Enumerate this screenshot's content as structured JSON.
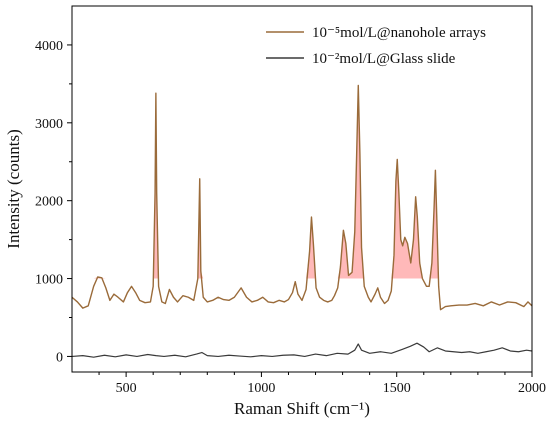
{
  "chart_data": {
    "type": "line",
    "xlabel": "Raman Shift (cm⁻¹)",
    "ylabel": "Intensity (counts)",
    "xlim": [
      300,
      2000
    ],
    "ylim": [
      -200,
      4500
    ],
    "x_ticks": [
      500,
      1000,
      1500,
      2000
    ],
    "y_ticks": [
      0,
      1000,
      2000,
      3000,
      4000
    ],
    "legend_position": "top-right",
    "grid": false,
    "series": [
      {
        "name": "10⁻⁵mol/L@nanohole arrays",
        "color": "#9a6b3a",
        "peak_fill_color": "#ff8080",
        "points": [
          [
            300,
            760
          ],
          [
            320,
            700
          ],
          [
            340,
            620
          ],
          [
            360,
            650
          ],
          [
            380,
            900
          ],
          [
            395,
            1020
          ],
          [
            410,
            1010
          ],
          [
            425,
            880
          ],
          [
            440,
            720
          ],
          [
            455,
            800
          ],
          [
            470,
            760
          ],
          [
            490,
            700
          ],
          [
            505,
            820
          ],
          [
            520,
            900
          ],
          [
            535,
            820
          ],
          [
            550,
            720
          ],
          [
            570,
            690
          ],
          [
            590,
            700
          ],
          [
            600,
            900
          ],
          [
            607,
            2100
          ],
          [
            610,
            3380
          ],
          [
            613,
            2100
          ],
          [
            620,
            900
          ],
          [
            632,
            700
          ],
          [
            645,
            680
          ],
          [
            660,
            860
          ],
          [
            675,
            760
          ],
          [
            690,
            700
          ],
          [
            710,
            780
          ],
          [
            730,
            760
          ],
          [
            750,
            720
          ],
          [
            765,
            1000
          ],
          [
            772,
            2280
          ],
          [
            776,
            1100
          ],
          [
            785,
            760
          ],
          [
            800,
            700
          ],
          [
            820,
            720
          ],
          [
            840,
            760
          ],
          [
            860,
            730
          ],
          [
            880,
            720
          ],
          [
            900,
            760
          ],
          [
            925,
            880
          ],
          [
            945,
            760
          ],
          [
            965,
            700
          ],
          [
            985,
            720
          ],
          [
            1005,
            760
          ],
          [
            1025,
            700
          ],
          [
            1045,
            690
          ],
          [
            1065,
            720
          ],
          [
            1085,
            700
          ],
          [
            1100,
            730
          ],
          [
            1115,
            820
          ],
          [
            1125,
            960
          ],
          [
            1135,
            800
          ],
          [
            1150,
            720
          ],
          [
            1165,
            860
          ],
          [
            1178,
            1350
          ],
          [
            1185,
            1790
          ],
          [
            1192,
            1450
          ],
          [
            1202,
            880
          ],
          [
            1215,
            760
          ],
          [
            1230,
            720
          ],
          [
            1245,
            700
          ],
          [
            1260,
            720
          ],
          [
            1270,
            780
          ],
          [
            1282,
            880
          ],
          [
            1292,
            1150
          ],
          [
            1303,
            1620
          ],
          [
            1312,
            1450
          ],
          [
            1322,
            1040
          ],
          [
            1335,
            1080
          ],
          [
            1345,
            1600
          ],
          [
            1352,
            2600
          ],
          [
            1358,
            3480
          ],
          [
            1364,
            2600
          ],
          [
            1370,
            1400
          ],
          [
            1380,
            900
          ],
          [
            1395,
            760
          ],
          [
            1405,
            700
          ],
          [
            1420,
            800
          ],
          [
            1430,
            880
          ],
          [
            1440,
            760
          ],
          [
            1455,
            680
          ],
          [
            1468,
            720
          ],
          [
            1480,
            840
          ],
          [
            1490,
            1300
          ],
          [
            1497,
            2250
          ],
          [
            1502,
            2530
          ],
          [
            1508,
            2100
          ],
          [
            1515,
            1500
          ],
          [
            1522,
            1420
          ],
          [
            1530,
            1530
          ],
          [
            1540,
            1450
          ],
          [
            1552,
            1200
          ],
          [
            1562,
            1500
          ],
          [
            1570,
            2050
          ],
          [
            1576,
            1800
          ],
          [
            1585,
            1200
          ],
          [
            1595,
            1000
          ],
          [
            1610,
            900
          ],
          [
            1620,
            900
          ],
          [
            1630,
            1200
          ],
          [
            1638,
            1900
          ],
          [
            1643,
            2390
          ],
          [
            1648,
            1800
          ],
          [
            1655,
            900
          ],
          [
            1662,
            600
          ],
          [
            1680,
            640
          ],
          [
            1700,
            650
          ],
          [
            1730,
            660
          ],
          [
            1760,
            660
          ],
          [
            1790,
            680
          ],
          [
            1820,
            650
          ],
          [
            1850,
            700
          ],
          [
            1880,
            660
          ],
          [
            1910,
            700
          ],
          [
            1940,
            690
          ],
          [
            1970,
            640
          ],
          [
            1985,
            700
          ],
          [
            2000,
            650
          ]
        ]
      },
      {
        "name": "10⁻²mol/L@Glass slide",
        "color": "#3a3a3a",
        "points": [
          [
            300,
            0
          ],
          [
            340,
            10
          ],
          [
            380,
            -10
          ],
          [
            420,
            15
          ],
          [
            460,
            -5
          ],
          [
            500,
            20
          ],
          [
            540,
            0
          ],
          [
            580,
            25
          ],
          [
            610,
            10
          ],
          [
            640,
            0
          ],
          [
            680,
            15
          ],
          [
            720,
            -5
          ],
          [
            760,
            30
          ],
          [
            780,
            50
          ],
          [
            800,
            10
          ],
          [
            840,
            0
          ],
          [
            880,
            15
          ],
          [
            920,
            5
          ],
          [
            960,
            -5
          ],
          [
            1000,
            10
          ],
          [
            1040,
            0
          ],
          [
            1080,
            15
          ],
          [
            1120,
            20
          ],
          [
            1160,
            0
          ],
          [
            1200,
            30
          ],
          [
            1240,
            10
          ],
          [
            1280,
            40
          ],
          [
            1320,
            30
          ],
          [
            1345,
            80
          ],
          [
            1358,
            160
          ],
          [
            1370,
            80
          ],
          [
            1400,
            40
          ],
          [
            1440,
            60
          ],
          [
            1480,
            40
          ],
          [
            1520,
            90
          ],
          [
            1550,
            130
          ],
          [
            1575,
            170
          ],
          [
            1600,
            120
          ],
          [
            1620,
            60
          ],
          [
            1650,
            110
          ],
          [
            1680,
            70
          ],
          [
            1710,
            60
          ],
          [
            1740,
            50
          ],
          [
            1770,
            60
          ],
          [
            1800,
            40
          ],
          [
            1830,
            60
          ],
          [
            1860,
            80
          ],
          [
            1890,
            110
          ],
          [
            1920,
            70
          ],
          [
            1950,
            60
          ],
          [
            1980,
            80
          ],
          [
            2000,
            70
          ]
        ]
      }
    ]
  }
}
